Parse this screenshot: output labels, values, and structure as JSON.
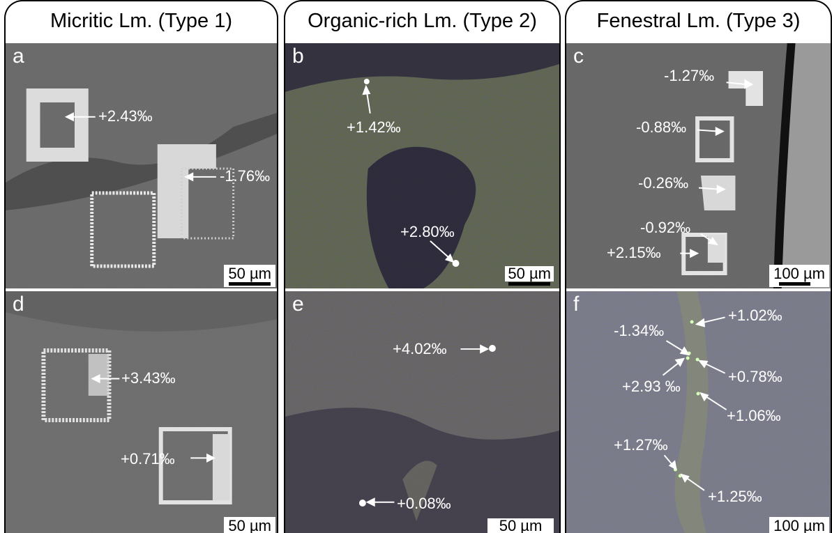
{
  "columns": [
    {
      "title": "Micritic Lm. (Type 1)"
    },
    {
      "title": "Organic-rich Lm. (Type 2)"
    },
    {
      "title": "Fenestral Lm. (Type 3)"
    }
  ],
  "panels": {
    "a": {
      "letter": "a",
      "scale": "50 µm",
      "labels": [
        "+2.43‰",
        "-1.76‰"
      ]
    },
    "b": {
      "letter": "b",
      "scale": "50 µm",
      "labels": [
        "+1.42‰",
        "+2.80‰"
      ]
    },
    "c": {
      "letter": "c",
      "scale": "100 µm",
      "labels": [
        "-1.27‰",
        "-0.88‰",
        "-0.26‰",
        "-0.92‰",
        "+2.15‰"
      ]
    },
    "d": {
      "letter": "d",
      "scale": "50 µm",
      "labels": [
        "+3.43‰",
        "+0.71‰"
      ]
    },
    "e": {
      "letter": "e",
      "scale": "50 µm",
      "labels": [
        "+4.02‰",
        "+0.08‰"
      ]
    },
    "f": {
      "letter": "f",
      "scale": "100 µm",
      "labels": [
        "+1.02‰",
        "-1.34‰",
        "+0.78‰",
        "+2.93 ‰",
        "+1.06‰",
        "+1.27‰",
        "+1.25‰"
      ]
    }
  },
  "colors": {
    "sem_gray": "#6e6e6e",
    "optical_green": "#5a6a3a",
    "optical_dark": "#231f3a",
    "annotation": "#ffffff"
  }
}
